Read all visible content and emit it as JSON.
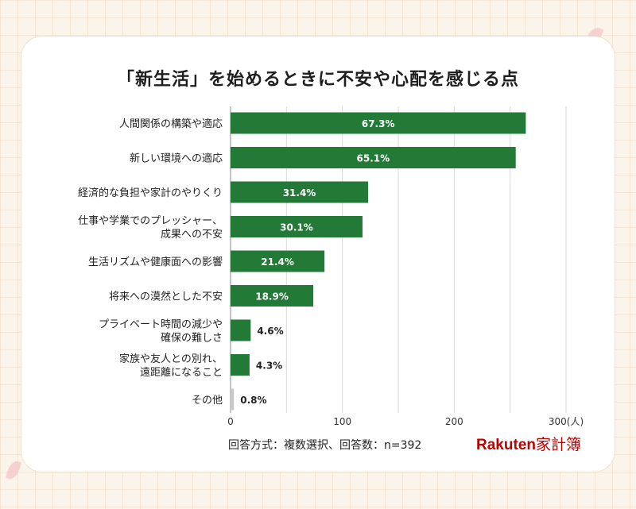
{
  "title": "「新生活」を始めるときに不安や心配を感じる点",
  "footnote": "回答方式：複数選択、回答数：n=392",
  "brand": {
    "name": "Rakuten",
    "product": "家計簿"
  },
  "colors": {
    "bar": "#237a37",
    "bar_other": "#c8c8c8",
    "grid": "#dadada",
    "brand": "#bf0000"
  },
  "chart_data": {
    "type": "bar",
    "orientation": "horizontal",
    "categories": [
      [
        "人間関係の構築や適応"
      ],
      [
        "新しい環境への適応"
      ],
      [
        "経済的な負担や家計のやりくり"
      ],
      [
        "仕事や学業でのプレッシャー、",
        "成果への不安"
      ],
      [
        "生活リズムや健康面への影響"
      ],
      [
        "将来への漠然とした不安"
      ],
      [
        "プライベート時間の減少や",
        "確保の難しさ"
      ],
      [
        "家族や友人との別れ、",
        "遠距離になること"
      ],
      [
        "その他"
      ]
    ],
    "values": [
      264,
      255,
      123,
      118,
      84,
      74,
      18,
      17,
      3
    ],
    "labels": [
      "67.3%",
      "65.1%",
      "31.4%",
      "30.1%",
      "21.4%",
      "18.9%",
      "4.6%",
      "4.3%",
      "0.8%"
    ],
    "xlim": [
      0,
      300
    ],
    "ticks": [
      "0",
      "100",
      "200",
      "300(人)"
    ],
    "grid": true
  }
}
